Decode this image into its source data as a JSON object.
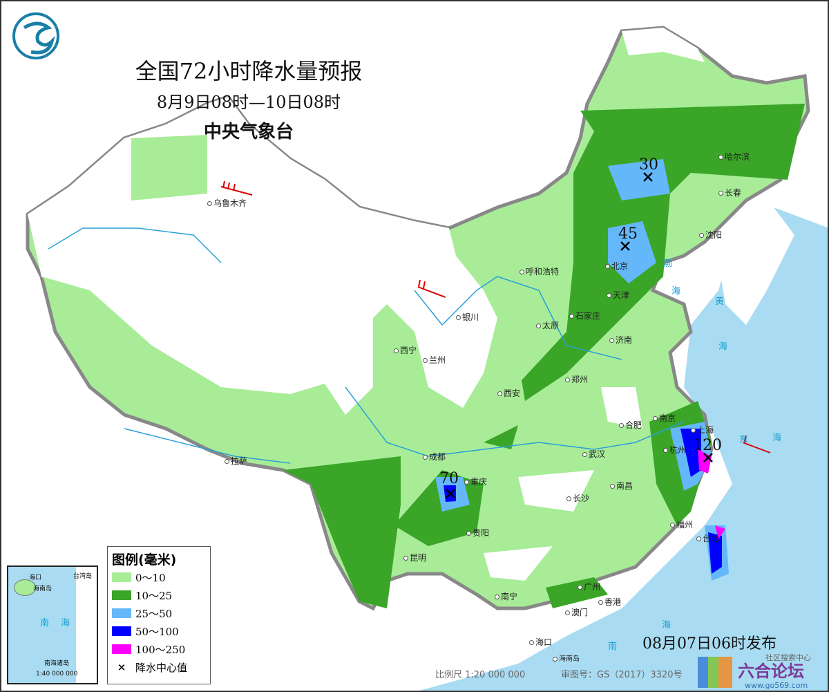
{
  "title": "全国72小时降水量预报",
  "period": "8月9日08时—10日08时",
  "issuer": "中央气象台",
  "issued": "08月07日06时发布",
  "scale": "比例尺 1:20 000 000",
  "map_review_no": "审图号：GS（2017）3320号",
  "legend": {
    "heading": "图例(毫米)",
    "items": [
      {
        "label": "0～10",
        "color": "#a8ec98"
      },
      {
        "label": "10～25",
        "color": "#3aa527"
      },
      {
        "label": "25～50",
        "color": "#64b8fa"
      },
      {
        "label": "50～100",
        "color": "#0000fe"
      },
      {
        "label": "100～250",
        "color": "#fc00fc"
      }
    ],
    "center_marker": "×",
    "center_label": "降水中心值"
  },
  "rain_centers": [
    "30",
    "45",
    "70",
    "120"
  ],
  "cities": [
    "乌鲁木齐",
    "呼和浩特",
    "银川",
    "西宁",
    "兰州",
    "太原",
    "石家庄",
    "北京",
    "天津",
    "济南",
    "郑州",
    "西安",
    "哈尔滨",
    "长春",
    "沈阳",
    "拉萨",
    "成都",
    "重庆",
    "贵阳",
    "昆明",
    "南宁",
    "广州",
    "香港",
    "澳门",
    "海口",
    "武汉",
    "长沙",
    "南昌",
    "合肥",
    "南京",
    "上海",
    "杭州",
    "福州",
    "台北"
  ],
  "seas": [
    "渤",
    "海",
    "黄",
    "海",
    "东",
    "海",
    "南",
    "海"
  ],
  "islands": [
    "海南岛"
  ],
  "inset": {
    "labels": [
      "海口",
      "海南岛",
      "台湾岛",
      "南",
      "海",
      "南海诸岛"
    ],
    "scale": "1:40 000 000"
  },
  "watermark": {
    "text": "六合论坛",
    "url": "www.go569.com",
    "sub": "社区搜索中心"
  }
}
